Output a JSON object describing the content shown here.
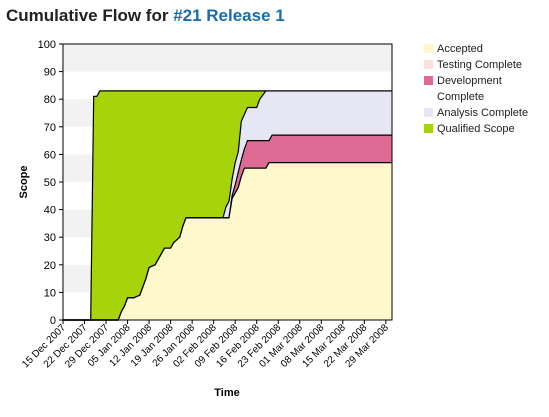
{
  "header": {
    "title_prefix": "Cumulative Flow for ",
    "title_link": "#21 Release 1"
  },
  "chart_data": {
    "type": "area",
    "stacked": true,
    "xlabel": "Time",
    "ylabel": "Scope",
    "ylim": [
      0,
      100
    ],
    "yticks": [
      0,
      10,
      20,
      30,
      40,
      50,
      60,
      70,
      80,
      90,
      100
    ],
    "x_ticks": [
      "15 Dec 2007",
      "22 Dec 2007",
      "29 Dec 2007",
      "05 Jan 2008",
      "12 Jan 2008",
      "19 Jan 2008",
      "26 Jan 2008",
      "02 Feb 2008",
      "09 Feb 2008",
      "16 Feb 2008",
      "23 Feb 2008",
      "01 Mar 2008",
      "08 Mar 2008",
      "15 Mar 2008",
      "22 Mar 2008",
      "29 Mar 2008"
    ],
    "x_start": "2007-12-15",
    "x_end": "2008-03-31",
    "legend_position": "right",
    "grid": "alternating horizontal bands",
    "series": [
      {
        "name": "Accepted",
        "color": "#fff8cc",
        "points": [
          [
            "2007-12-15",
            0
          ],
          [
            "2008-01-02",
            0
          ],
          [
            "2008-01-03",
            3
          ],
          [
            "2008-01-04",
            5
          ],
          [
            "2008-01-05",
            8
          ],
          [
            "2008-01-07",
            8
          ],
          [
            "2008-01-09",
            9
          ],
          [
            "2008-01-10",
            12
          ],
          [
            "2008-01-11",
            15
          ],
          [
            "2008-01-12",
            19
          ],
          [
            "2008-01-14",
            20
          ],
          [
            "2008-01-15",
            22
          ],
          [
            "2008-01-16",
            24
          ],
          [
            "2008-01-17",
            26
          ],
          [
            "2008-01-19",
            26
          ],
          [
            "2008-01-20",
            28
          ],
          [
            "2008-01-22",
            30
          ],
          [
            "2008-01-23",
            34
          ],
          [
            "2008-01-24",
            37
          ],
          [
            "2008-02-07",
            37
          ],
          [
            "2008-02-08",
            44
          ],
          [
            "2008-02-10",
            48
          ],
          [
            "2008-02-11",
            52
          ],
          [
            "2008-02-12",
            55
          ],
          [
            "2008-02-19",
            55
          ],
          [
            "2008-02-20",
            57
          ],
          [
            "2008-03-31",
            57
          ]
        ]
      },
      {
        "name": "Testing Complete",
        "color": "#fbe0df",
        "points": [
          [
            "2007-12-15",
            0
          ],
          [
            "2008-01-02",
            0
          ],
          [
            "2008-01-03",
            3
          ],
          [
            "2008-01-04",
            5
          ],
          [
            "2008-01-05",
            8
          ],
          [
            "2008-01-07",
            8
          ],
          [
            "2008-01-09",
            9
          ],
          [
            "2008-01-10",
            12
          ],
          [
            "2008-01-11",
            15
          ],
          [
            "2008-01-12",
            19
          ],
          [
            "2008-01-14",
            20
          ],
          [
            "2008-01-15",
            22
          ],
          [
            "2008-01-16",
            24
          ],
          [
            "2008-01-17",
            26
          ],
          [
            "2008-01-19",
            26
          ],
          [
            "2008-01-20",
            28
          ],
          [
            "2008-01-22",
            30
          ],
          [
            "2008-01-23",
            34
          ],
          [
            "2008-01-24",
            37
          ],
          [
            "2008-02-07",
            37
          ],
          [
            "2008-02-08",
            44
          ],
          [
            "2008-02-10",
            48
          ],
          [
            "2008-02-11",
            52
          ],
          [
            "2008-02-12",
            55
          ],
          [
            "2008-02-19",
            55
          ],
          [
            "2008-02-20",
            57
          ],
          [
            "2008-03-31",
            57
          ]
        ]
      },
      {
        "name": "Development Complete",
        "color": "#dd6b93",
        "points": [
          [
            "2007-12-15",
            0
          ],
          [
            "2008-01-02",
            0
          ],
          [
            "2008-01-03",
            3
          ],
          [
            "2008-01-04",
            5
          ],
          [
            "2008-01-05",
            8
          ],
          [
            "2008-01-07",
            8
          ],
          [
            "2008-01-09",
            9
          ],
          [
            "2008-01-10",
            12
          ],
          [
            "2008-01-11",
            15
          ],
          [
            "2008-01-12",
            19
          ],
          [
            "2008-01-14",
            20
          ],
          [
            "2008-01-15",
            22
          ],
          [
            "2008-01-16",
            24
          ],
          [
            "2008-01-17",
            26
          ],
          [
            "2008-01-19",
            26
          ],
          [
            "2008-01-20",
            28
          ],
          [
            "2008-01-22",
            30
          ],
          [
            "2008-01-23",
            34
          ],
          [
            "2008-01-24",
            37
          ],
          [
            "2008-02-07",
            37
          ],
          [
            "2008-02-08",
            45
          ],
          [
            "2008-02-09",
            49
          ],
          [
            "2008-02-11",
            58
          ],
          [
            "2008-02-12",
            62
          ],
          [
            "2008-02-13",
            65
          ],
          [
            "2008-02-20",
            65
          ],
          [
            "2008-02-21",
            67
          ],
          [
            "2008-03-31",
            67
          ]
        ]
      },
      {
        "name": "Analysis Complete",
        "color": "#e6e6f5",
        "points": [
          [
            "2007-12-15",
            0
          ],
          [
            "2008-01-02",
            0
          ],
          [
            "2008-01-03",
            3
          ],
          [
            "2008-01-04",
            5
          ],
          [
            "2008-01-05",
            8
          ],
          [
            "2008-01-07",
            8
          ],
          [
            "2008-01-09",
            9
          ],
          [
            "2008-01-10",
            12
          ],
          [
            "2008-01-11",
            15
          ],
          [
            "2008-01-12",
            19
          ],
          [
            "2008-01-14",
            20
          ],
          [
            "2008-01-15",
            22
          ],
          [
            "2008-01-16",
            24
          ],
          [
            "2008-01-17",
            26
          ],
          [
            "2008-01-19",
            26
          ],
          [
            "2008-01-20",
            28
          ],
          [
            "2008-01-22",
            30
          ],
          [
            "2008-01-23",
            34
          ],
          [
            "2008-01-24",
            37
          ],
          [
            "2008-02-05",
            37
          ],
          [
            "2008-02-06",
            41
          ],
          [
            "2008-02-07",
            43
          ],
          [
            "2008-02-08",
            51
          ],
          [
            "2008-02-09",
            57
          ],
          [
            "2008-02-10",
            61
          ],
          [
            "2008-02-11",
            72
          ],
          [
            "2008-02-13",
            77
          ],
          [
            "2008-02-16",
            77
          ],
          [
            "2008-02-17",
            80
          ],
          [
            "2008-02-19",
            83
          ],
          [
            "2008-03-31",
            83
          ]
        ]
      },
      {
        "name": "Qualified Scope",
        "color": "#a6d30a",
        "points": [
          [
            "2007-12-15",
            0
          ],
          [
            "2007-12-24",
            0
          ],
          [
            "2007-12-25",
            81
          ],
          [
            "2007-12-26",
            81
          ],
          [
            "2007-12-27",
            83
          ],
          [
            "2008-02-19",
            83
          ]
        ]
      }
    ]
  }
}
